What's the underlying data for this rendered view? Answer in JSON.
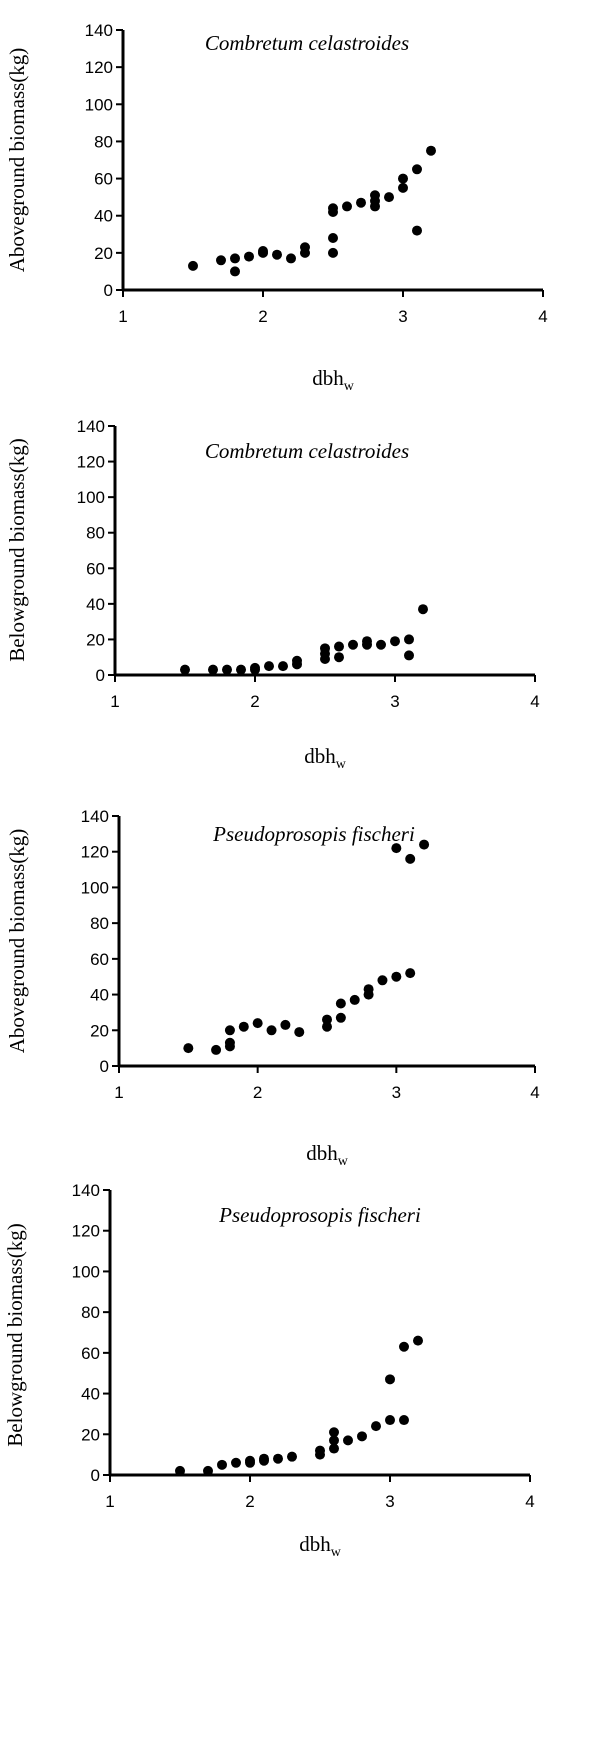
{
  "chart_data": [
    {
      "type": "scatter",
      "title": "Combretum celastroides",
      "xlabel": "dbh",
      "xlabel_sub": "w",
      "ylabel": "Aboveground biomass(kg)",
      "xlim": [
        1,
        4
      ],
      "ylim": [
        0,
        140
      ],
      "xticks": [
        "1",
        "2",
        "3",
        "4"
      ],
      "yticks": [
        "0",
        "20",
        "40",
        "60",
        "80",
        "100",
        "120",
        "140"
      ],
      "grid": false,
      "x": [
        1.5,
        1.7,
        1.8,
        1.8,
        1.9,
        2.0,
        2.0,
        2.1,
        2.2,
        2.3,
        2.3,
        2.5,
        2.5,
        2.5,
        2.5,
        2.6,
        2.7,
        2.8,
        2.8,
        2.8,
        2.9,
        3.0,
        3.0,
        3.1,
        3.1,
        3.2
      ],
      "y": [
        13,
        16,
        10,
        17,
        18,
        20,
        21,
        19,
        17,
        20,
        23,
        20,
        28,
        42,
        44,
        45,
        47,
        45,
        48,
        51,
        50,
        55,
        60,
        65,
        32,
        75
      ]
    },
    {
      "type": "scatter",
      "title": "Combretum celastroides",
      "xlabel": "dbh",
      "xlabel_sub": "w",
      "ylabel": "Belowground biomass(kg)",
      "xlim": [
        1,
        4
      ],
      "ylim": [
        0,
        140
      ],
      "xticks": [
        "1",
        "2",
        "3",
        "4"
      ],
      "yticks": [
        "0",
        "20",
        "40",
        "60",
        "80",
        "100",
        "120",
        "140"
      ],
      "grid": false,
      "x": [
        1.5,
        1.7,
        1.8,
        1.9,
        2.0,
        2.0,
        2.1,
        2.2,
        2.3,
        2.3,
        2.5,
        2.5,
        2.5,
        2.6,
        2.6,
        2.7,
        2.8,
        2.8,
        2.9,
        3.0,
        3.1,
        3.1,
        3.2
      ],
      "y": [
        3,
        3,
        3,
        3,
        3,
        4,
        5,
        5,
        6,
        8,
        9,
        12,
        15,
        10,
        16,
        17,
        17,
        19,
        17,
        19,
        20,
        11,
        37
      ]
    },
    {
      "type": "scatter",
      "title": "Pseudoprosopis fischeri",
      "xlabel": "dbh",
      "xlabel_sub": "w",
      "ylabel": "Aboveground biomass(kg)",
      "xlim": [
        1,
        4
      ],
      "ylim": [
        0,
        140
      ],
      "xticks": [
        "1",
        "2",
        "3",
        "4"
      ],
      "yticks": [
        "0",
        "20",
        "40",
        "60",
        "80",
        "100",
        "120",
        "140"
      ],
      "grid": false,
      "x": [
        1.5,
        1.7,
        1.8,
        1.8,
        1.8,
        1.9,
        2.0,
        2.1,
        2.2,
        2.3,
        2.5,
        2.5,
        2.6,
        2.6,
        2.7,
        2.8,
        2.8,
        2.9,
        3.0,
        3.0,
        3.1,
        3.1,
        3.2
      ],
      "y": [
        10,
        9,
        11,
        13,
        20,
        22,
        24,
        20,
        23,
        19,
        22,
        26,
        27,
        35,
        37,
        40,
        43,
        48,
        50,
        122,
        52,
        116,
        124
      ]
    },
    {
      "type": "scatter",
      "title": "Pseudoprosopis fischeri",
      "xlabel": "dbh",
      "xlabel_sub": "w",
      "ylabel": "Belowground biomass(kg)",
      "xlim": [
        1,
        4
      ],
      "ylim": [
        0,
        140
      ],
      "xticks": [
        "1",
        "2",
        "3",
        "4"
      ],
      "yticks": [
        "0",
        "20",
        "40",
        "60",
        "80",
        "100",
        "120",
        "140"
      ],
      "grid": false,
      "x": [
        1.5,
        1.7,
        1.8,
        1.9,
        2.0,
        2.0,
        2.1,
        2.1,
        2.2,
        2.3,
        2.5,
        2.5,
        2.6,
        2.6,
        2.6,
        2.7,
        2.8,
        2.9,
        3.0,
        3.0,
        3.1,
        3.1,
        3.2
      ],
      "y": [
        2,
        2,
        5,
        6,
        6,
        7,
        7,
        8,
        8,
        9,
        10,
        12,
        13,
        17,
        21,
        17,
        19,
        24,
        27,
        47,
        27,
        63,
        66
      ]
    }
  ]
}
